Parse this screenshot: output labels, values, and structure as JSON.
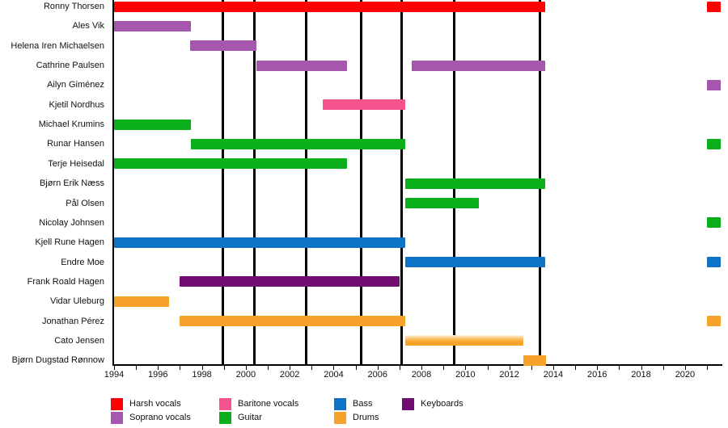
{
  "chart_data": {
    "type": "bar",
    "subtype": "band-member-timeline-gantt",
    "title": "",
    "x_axis": {
      "min": 1994,
      "max": 2021.7,
      "labeled_ticks": [
        1994,
        1996,
        1998,
        2000,
        2002,
        2004,
        2006,
        2008,
        2010,
        2012,
        2014,
        2016,
        2018,
        2020
      ],
      "minor_tick_every": 1
    },
    "event_lines": {
      "meaning": "album-release-markers",
      "color": "#000000",
      "years": [
        1998.95,
        2000.38,
        2002.73,
        2005.27,
        2007.1,
        2009.5,
        2013.4
      ]
    },
    "legend": [
      {
        "label": "Harsh vocals",
        "color": "#fe0000"
      },
      {
        "label": "Soprano vocals",
        "color": "#a557ae"
      },
      {
        "label": "Baritone vocals",
        "color": "#f5528e"
      },
      {
        "label": "Guitar",
        "color": "#0aaf1b"
      },
      {
        "label": "Bass",
        "color": "#0e72c6"
      },
      {
        "label": "Drums",
        "color": "#f7a32b"
      },
      {
        "label": "Keyboards",
        "color": "#700d70"
      }
    ],
    "members": [
      {
        "name": "Ronny Thorsen",
        "role": "Harsh vocals",
        "segments": [
          [
            1994.0,
            2013.65
          ],
          [
            2021.0,
            2021.62
          ]
        ]
      },
      {
        "name": "Ales Vik",
        "role": "Soprano vocals",
        "segments": [
          [
            1994.0,
            1997.5
          ]
        ]
      },
      {
        "name": "Helena Iren Michaelsen",
        "role": "Soprano vocals",
        "segments": [
          [
            1997.45,
            2000.5
          ]
        ]
      },
      {
        "name": "Cathrine Paulsen",
        "role": "Soprano vocals",
        "segments": [
          [
            2000.5,
            2004.6
          ],
          [
            2007.55,
            2013.65
          ]
        ]
      },
      {
        "name": "Ailyn Giménez",
        "role": "Soprano vocals",
        "segments": [
          [
            2021.0,
            2021.62
          ]
        ]
      },
      {
        "name": "Kjetil Nordhus",
        "role": "Baritone vocals",
        "segments": [
          [
            2003.5,
            2007.25
          ]
        ]
      },
      {
        "name": "Michael Krumins",
        "role": "Guitar",
        "segments": [
          [
            1994.0,
            1997.5
          ]
        ]
      },
      {
        "name": "Runar Hansen",
        "role": "Guitar",
        "segments": [
          [
            1997.5,
            2007.25
          ],
          [
            2021.0,
            2021.62
          ]
        ]
      },
      {
        "name": "Terje Heisedal",
        "role": "Guitar",
        "segments": [
          [
            1994.0,
            2004.6
          ]
        ]
      },
      {
        "name": "Bjørn Erik Næss",
        "role": "Guitar",
        "segments": [
          [
            2007.25,
            2013.65
          ]
        ]
      },
      {
        "name": "Pål Olsen",
        "role": "Guitar",
        "segments": [
          [
            2007.25,
            2010.6
          ]
        ]
      },
      {
        "name": "Nicolay Johnsen",
        "role": "Guitar",
        "segments": [
          [
            2021.0,
            2021.62
          ]
        ]
      },
      {
        "name": "Kjell Rune Hagen",
        "role": "Bass",
        "segments": [
          [
            1994.0,
            2007.25
          ]
        ]
      },
      {
        "name": "Endre Moe",
        "role": "Bass",
        "segments": [
          [
            2007.25,
            2013.65
          ],
          [
            2021.0,
            2021.62
          ]
        ]
      },
      {
        "name": "Frank Roald Hagen",
        "role": "Keyboards",
        "segments": [
          [
            1997.0,
            2007.0
          ]
        ]
      },
      {
        "name": "Vidar Uleburg",
        "role": "Drums",
        "segments": [
          [
            1994.0,
            1996.5
          ]
        ]
      },
      {
        "name": "Jonathan Pérez",
        "role": "Drums",
        "segments": [
          [
            1997.0,
            2007.25
          ],
          [
            2021.0,
            2021.62
          ]
        ]
      },
      {
        "name": "Cato Jensen",
        "role": "Drums",
        "faded": true,
        "segments": [
          [
            2007.25,
            2012.63
          ]
        ]
      },
      {
        "name": "Bjørn Dugstad Rønnow",
        "role": "Drums",
        "segments": [
          [
            2012.63,
            2013.67
          ]
        ]
      }
    ]
  }
}
